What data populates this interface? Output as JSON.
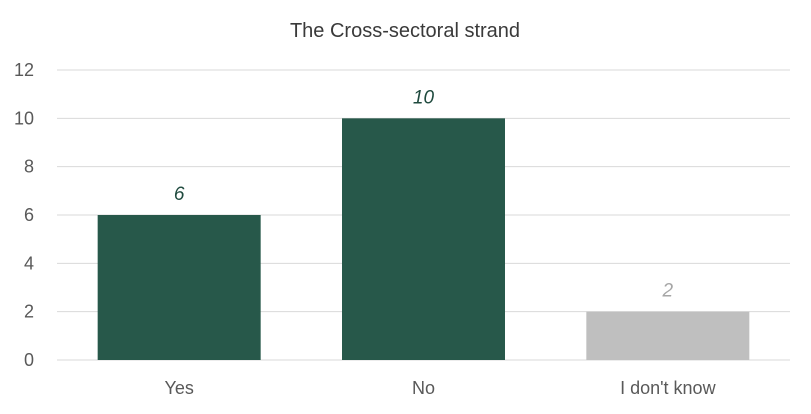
{
  "chart_data": {
    "type": "bar",
    "title": "The Cross-sectoral strand",
    "xlabel": "",
    "ylabel": "",
    "categories": [
      "Yes",
      "No",
      "I don't know"
    ],
    "values": [
      6,
      10,
      2
    ],
    "data_labels": [
      "6",
      "10",
      "2"
    ],
    "bar_colors": [
      "#27584a",
      "#27584a",
      "#bfbfbf"
    ],
    "label_colors": [
      "#1f4a3e",
      "#1f4a3e",
      "#a6a6a6"
    ],
    "ylim": [
      0,
      12
    ],
    "yticks": [
      "0",
      "2",
      "4",
      "6",
      "8",
      "10",
      "12"
    ],
    "grid": true,
    "legend": "none"
  }
}
